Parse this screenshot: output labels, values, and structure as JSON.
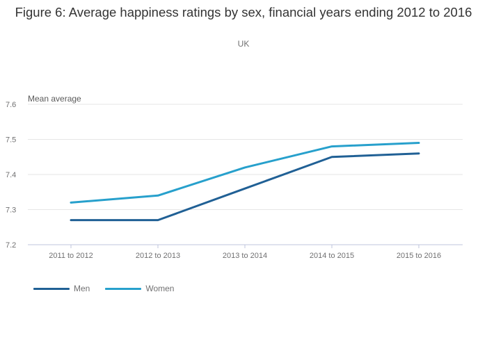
{
  "chart_data": {
    "type": "line",
    "title": "Figure 6: Average happiness ratings by sex, financial years ending 2012 to 2016",
    "subtitle": "UK",
    "ylabel": "Mean average",
    "xlabel": "",
    "categories": [
      "2011 to 2012",
      "2012 to 2013",
      "2013 to 2014",
      "2014 to 2015",
      "2015 to 2016"
    ],
    "ylim": [
      7.2,
      7.6
    ],
    "yticks": [
      "7.2",
      "7.3",
      "7.4",
      "7.5",
      "7.6"
    ],
    "grid": true,
    "legend_position": "bottom-left",
    "series": [
      {
        "name": "Men",
        "color": "#206095",
        "values": [
          7.27,
          7.27,
          7.36,
          7.45,
          7.46
        ]
      },
      {
        "name": "Women",
        "color": "#27a0cc",
        "values": [
          7.32,
          7.34,
          7.42,
          7.48,
          7.49
        ]
      }
    ]
  }
}
